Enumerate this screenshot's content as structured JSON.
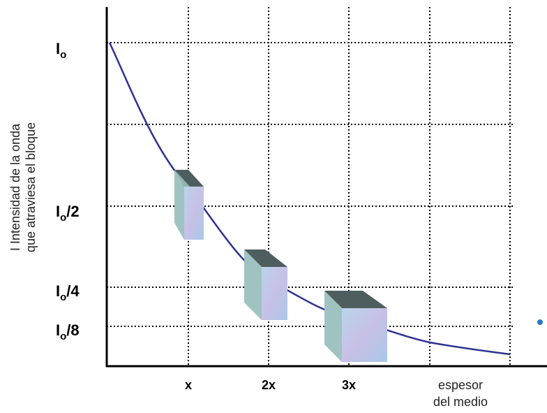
{
  "y_axis_label": [
    "I Intensidad de la onda",
    "que atraviesa el bloque"
  ],
  "y_labels": [
    {
      "main": "I",
      "sub": "o"
    },
    {
      "main": "I",
      "sub": "o",
      "rest": "/2"
    },
    {
      "main": "I",
      "sub": "o",
      "rest": "/4"
    },
    {
      "main": "I",
      "sub": "o",
      "rest": "/8"
    }
  ],
  "x_labels": [
    "x",
    "2x",
    "3x"
  ],
  "x_axis_label": [
    "espesor",
    "del medio"
  ]
}
